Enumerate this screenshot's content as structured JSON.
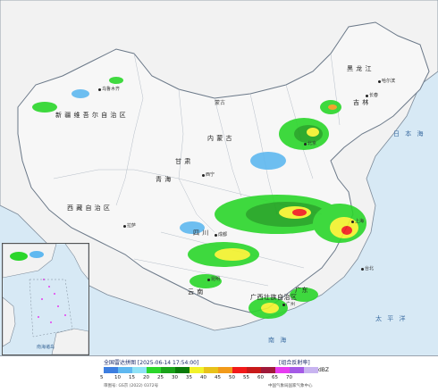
{
  "regions": [
    {
      "id": "xinjiang",
      "label": "新 疆 维 吾 尔 自 治 区"
    },
    {
      "id": "xizang",
      "label": "西 藏 自 治 区"
    },
    {
      "id": "qinghai",
      "label": "青 海"
    },
    {
      "id": "neimenggu",
      "label": "内 蒙 古"
    },
    {
      "id": "gansu",
      "label": "甘 肃"
    },
    {
      "id": "sichuan",
      "label": "四 川"
    },
    {
      "id": "yunnan",
      "label": "云 南"
    },
    {
      "id": "heilongjiang",
      "label": "黑 龙 江"
    },
    {
      "id": "jilin",
      "label": "吉 林"
    },
    {
      "id": "guangxi",
      "label": "广西壮族自治区"
    },
    {
      "id": "guangdong",
      "label": "广东"
    }
  ],
  "seas": [
    {
      "id": "sea-japan",
      "label": "日 本 海"
    },
    {
      "id": "pacific",
      "label": "太 平 洋"
    },
    {
      "id": "south-china-sea",
      "label": "南 海"
    }
  ],
  "countries": [
    {
      "id": "mongolia",
      "label": "蒙古"
    }
  ],
  "cities": [
    {
      "id": "urumqi",
      "label": "乌鲁木齐"
    },
    {
      "id": "lhasa",
      "label": "拉萨"
    },
    {
      "id": "harbin",
      "label": "哈尔滨"
    },
    {
      "id": "changchun",
      "label": "长春"
    },
    {
      "id": "beijing",
      "label": "北京"
    },
    {
      "id": "shanghai",
      "label": "上海"
    },
    {
      "id": "guangzhou",
      "label": "广州"
    },
    {
      "id": "chengdu",
      "label": "成都"
    },
    {
      "id": "kunming",
      "label": "昆明"
    },
    {
      "id": "xining",
      "label": "西宁"
    },
    {
      "id": "taipei",
      "label": "台北"
    }
  ],
  "inset": {
    "label": "南海诸岛"
  },
  "legend": {
    "title": "全国雷达拼图 [2025-06-14 17:54:00]",
    "product": "[组合反射率]",
    "unit": "dBZ",
    "approval": "审图号: GS京 (2022) 0372号",
    "producer": "中国气象局国家气象中心",
    "levels": [
      "5",
      "10",
      "15",
      "20",
      "25",
      "30",
      "35",
      "40",
      "45",
      "50",
      "55",
      "60",
      "65",
      "70"
    ],
    "colors": [
      "#3d7ee0",
      "#5fb8f0",
      "#8fe2f6",
      "#2bd62b",
      "#1aa31a",
      "#0a7a0a",
      "#f2f22a",
      "#e8c21a",
      "#f29a1a",
      "#f21a1a",
      "#c81a1a",
      "#a01a3a",
      "#e63cf0",
      "#a45ae6",
      "#c8b4f0"
    ]
  },
  "style": {
    "land": "#f2f2f2",
    "sea": "#d7e9f5",
    "border": "#7c8a99",
    "province_border": "#b6bec8"
  }
}
